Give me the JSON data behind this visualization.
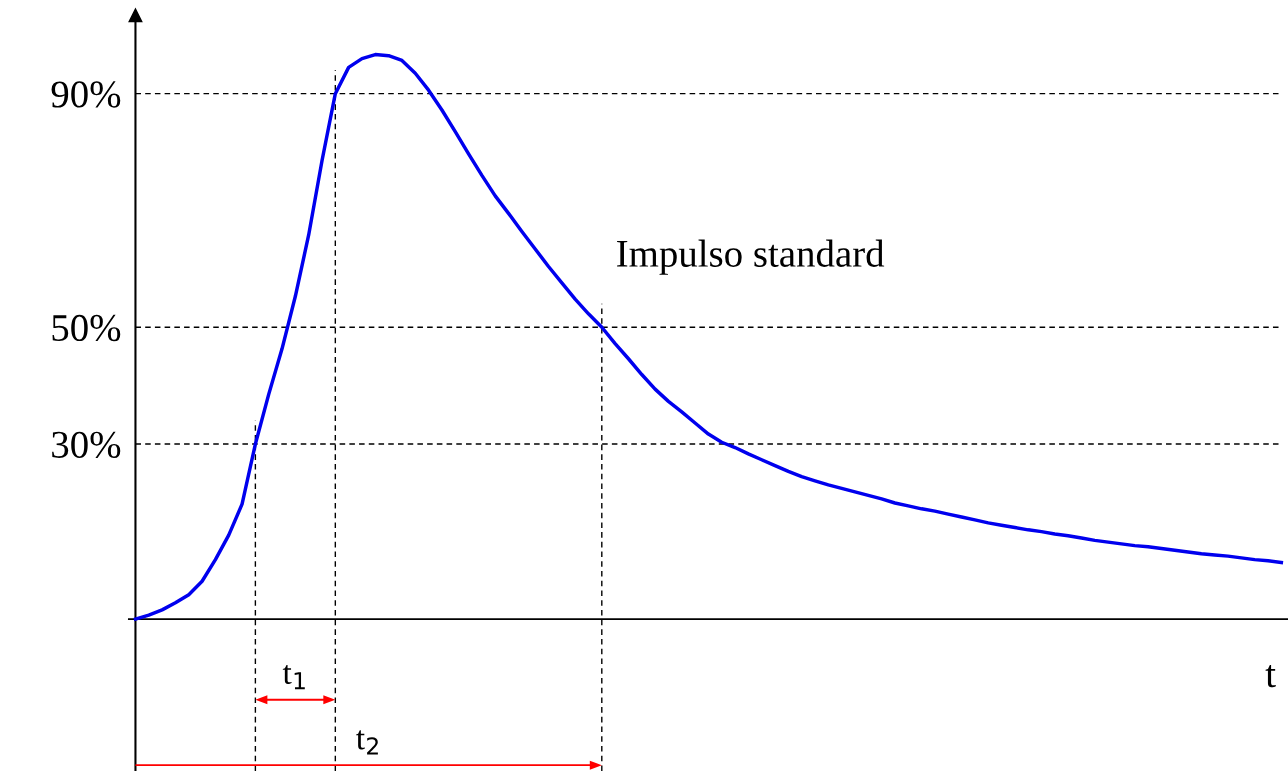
{
  "chart_data": {
    "type": "line",
    "categories": [
      null,
      null,
      null,
      null,
      null,
      null,
      null,
      null,
      null,
      null,
      null,
      null,
      null,
      null,
      null,
      null,
      null,
      null,
      null,
      null,
      null,
      null,
      null,
      null,
      null,
      null,
      null,
      null,
      null,
      null,
      null,
      null,
      null,
      null,
      null,
      null,
      null,
      null,
      null,
      null,
      null,
      null,
      null,
      null,
      null,
      null,
      null,
      null,
      null,
      null,
      null,
      null,
      null,
      null,
      null,
      null,
      null,
      null,
      null,
      null,
      null,
      null,
      null,
      null,
      null,
      null,
      null,
      null,
      null,
      null,
      null,
      null,
      null,
      null,
      null,
      null,
      null,
      null,
      null,
      null,
      null,
      null,
      null,
      null,
      null,
      null,
      null
    ],
    "series": [
      {
        "color": "#0000ee",
        "values": [
          0,
          0.7,
          1.6,
          2.8,
          4.2,
          6.5,
          10.2,
          14.4,
          19.7,
          30,
          38.5,
          46.3,
          55.3,
          65.8,
          78.5,
          90,
          94.5,
          96.0,
          96.7,
          96.5,
          95.7,
          93.5,
          90.6,
          87.2,
          83.5,
          79.7,
          76.0,
          72.5,
          69.5,
          66.4,
          63.4,
          60.4,
          57.6,
          54.8,
          52.3,
          50,
          47.2,
          44.6,
          41.9,
          39.4,
          37.3,
          35.5,
          33.6,
          31.7,
          30.3,
          29.4,
          28.3,
          27.3,
          26.3,
          25.3,
          24.4,
          23.7,
          23.0,
          22.4,
          21.8,
          21.2,
          20.6,
          19.9,
          19.4,
          18.9,
          18.5,
          18.0,
          17.5,
          17.0,
          16.5,
          16.1,
          15.7,
          15.3,
          15.0,
          14.6,
          14.3,
          13.9,
          13.5,
          13.2,
          12.9,
          12.6,
          12.4,
          12.1,
          11.8,
          11.5,
          11.2,
          11.0,
          10.8,
          10.5,
          10.2,
          10.0,
          9.7
        ]
      }
    ],
    "ylim": [
      -26,
      103.4
    ],
    "yticks": [
      {
        "value": 30,
        "label": "30%"
      },
      {
        "value": 50,
        "label": "50%"
      },
      {
        "value": 90,
        "label": "90%"
      }
    ],
    "tick_labels": "y",
    "grid": false,
    "marker": "none",
    "line_style": "solid",
    "ref_lines": [
      {
        "axis": "y",
        "value": 30,
        "color": "#000000",
        "line_style": "dashed"
      },
      {
        "axis": "y",
        "value": 90,
        "color": "#000000",
        "line_style": "dashed"
      },
      {
        "axis": "y",
        "value": 50,
        "color": "#000000",
        "line_style": "dashed"
      }
    ],
    "annotations": [
      "Impulso standard",
      "t$_{1}$",
      "t$_{2}$",
      "t"
    ]
  }
}
